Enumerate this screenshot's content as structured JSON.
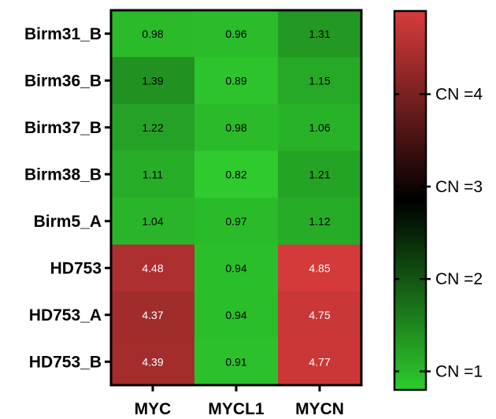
{
  "chart_data": {
    "type": "heatmap",
    "title": "",
    "rows": [
      "Birm31_B",
      "Birm36_B",
      "Birm37_B",
      "Birm38_B",
      "Birm5_A",
      "HD753",
      "HD753_A",
      "HD753_B"
    ],
    "columns": [
      "MYC",
      "MYCL1",
      "MYCN"
    ],
    "values": [
      [
        0.98,
        0.96,
        1.31
      ],
      [
        1.39,
        0.89,
        1.15
      ],
      [
        1.22,
        0.98,
        1.06
      ],
      [
        1.11,
        0.82,
        1.21
      ],
      [
        1.04,
        0.97,
        1.12
      ],
      [
        4.48,
        0.94,
        4.85
      ],
      [
        4.37,
        0.94,
        4.75
      ],
      [
        4.39,
        0.91,
        4.77
      ]
    ],
    "cell_labels": [
      [
        "0.98",
        "0.96",
        "1.31"
      ],
      [
        "1.39",
        "0.89",
        "1.15"
      ],
      [
        "1.22",
        "0.98",
        "1.06"
      ],
      [
        "1.11",
        "0.82",
        "1.21"
      ],
      [
        "1.04",
        "0.97",
        "1.12"
      ],
      [
        "4.48",
        "0.94",
        "4.85"
      ],
      [
        "4.37",
        "0.94",
        "4.75"
      ],
      [
        "4.39",
        "0.91",
        "4.77"
      ]
    ],
    "colorbar": {
      "range": [
        0.8,
        4.9
      ],
      "colors": {
        "low": "#2ecc2e",
        "mid": "#000000",
        "high": "#d93b3b"
      },
      "ticks": [
        {
          "value": 1,
          "label": "CN =1"
        },
        {
          "value": 2,
          "label": "CN =2"
        },
        {
          "value": 3,
          "label": "CN =3"
        },
        {
          "value": 4,
          "label": "CN =4"
        }
      ]
    },
    "legend_position": "right"
  }
}
